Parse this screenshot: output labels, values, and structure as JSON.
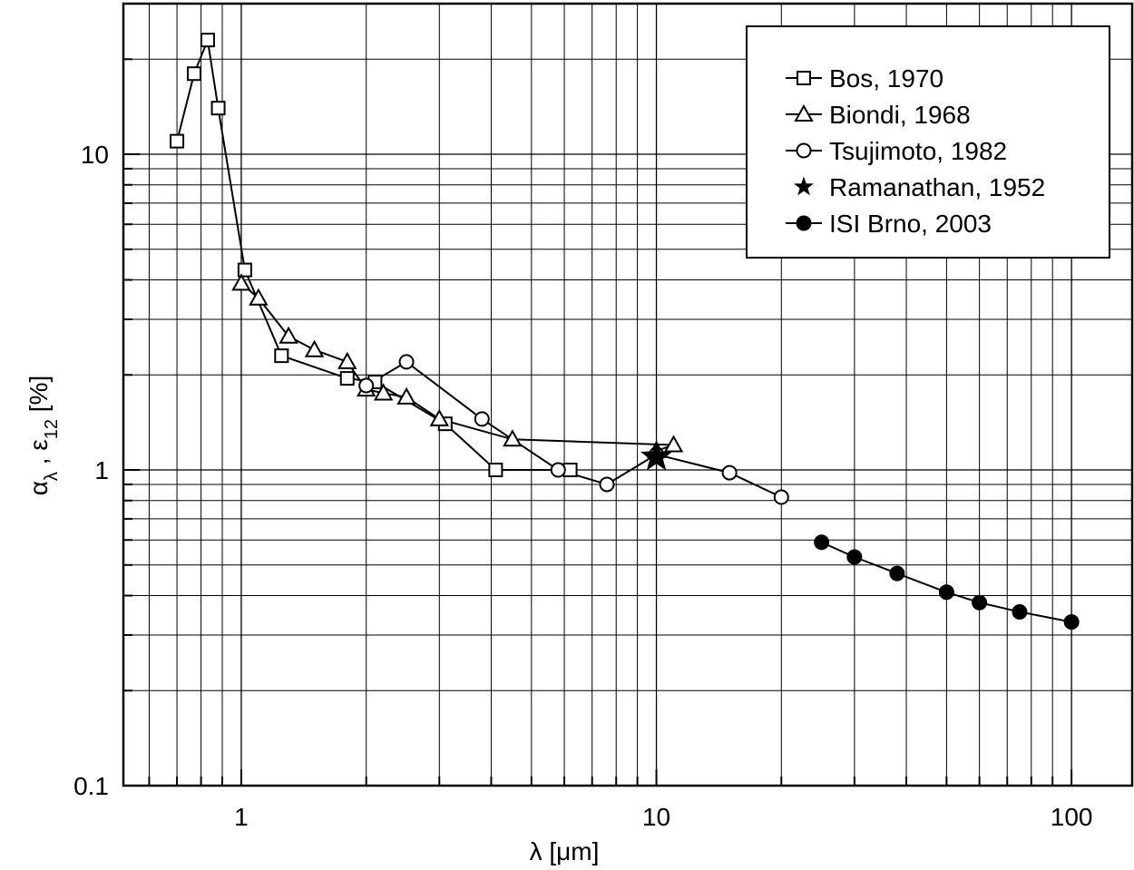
{
  "chart_data": {
    "type": "line",
    "xscale": "log",
    "yscale": "log",
    "xlim": [
      0.52,
      140
    ],
    "ylim": [
      0.1,
      30
    ],
    "grid": true,
    "legend_position": "top-right",
    "xlabel": "λ [μm]",
    "ylabel": {
      "alpha": "α",
      "lambda_sub": "λ",
      "sep": " ,  ",
      "eps": "ε",
      "eps_sub": "12",
      "unit": "  [%]"
    },
    "x_ticks": [
      {
        "value": 1,
        "label": "1"
      },
      {
        "value": 10,
        "label": "10"
      },
      {
        "value": 100,
        "label": "100"
      }
    ],
    "y_ticks": [
      {
        "value": 0.1,
        "label": "0.1"
      },
      {
        "value": 1,
        "label": "1"
      },
      {
        "value": 10,
        "label": "10"
      }
    ],
    "series": [
      {
        "name": "Bos, 1970",
        "marker": "square",
        "x": [
          0.7,
          0.77,
          0.83,
          0.88,
          1.02,
          1.25,
          1.8,
          2.1,
          3.1,
          4.1,
          6.2
        ],
        "y": [
          11,
          18,
          23,
          14,
          4.3,
          2.3,
          1.95,
          1.9,
          1.4,
          1.0,
          1.0
        ]
      },
      {
        "name": "Biondi, 1968",
        "marker": "triangle",
        "x": [
          1.0,
          1.1,
          1.3,
          1.5,
          1.8,
          2.0,
          2.2,
          2.5,
          3.0,
          4.5,
          11.0,
          10.0
        ],
        "y": [
          3.9,
          3.5,
          2.65,
          2.4,
          2.2,
          1.8,
          1.75,
          1.7,
          1.45,
          1.25,
          1.2,
          1.15
        ]
      },
      {
        "name": "Tsujimoto, 1982",
        "marker": "circle-open",
        "x": [
          2.0,
          2.5,
          3.8,
          5.8,
          7.6,
          10.0,
          15.0,
          20.0
        ],
        "y": [
          1.85,
          2.2,
          1.45,
          1.0,
          0.9,
          1.12,
          0.98,
          0.82
        ]
      },
      {
        "name": "Ramanathan, 1952",
        "marker": "star",
        "x": [
          10.0
        ],
        "y": [
          1.1
        ]
      },
      {
        "name": "ISI Brno, 2003",
        "marker": "circle-filled",
        "x": [
          25,
          30,
          38,
          50,
          60,
          75,
          100
        ],
        "y": [
          0.59,
          0.53,
          0.47,
          0.41,
          0.38,
          0.355,
          0.33
        ]
      }
    ]
  }
}
